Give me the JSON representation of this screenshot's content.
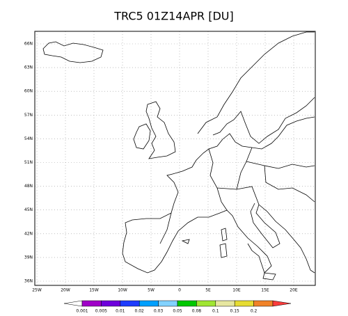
{
  "title": "TRC5 01Z14APR [DU]",
  "map": {
    "lat_labels": [
      "36N",
      "39N",
      "42N",
      "45N",
      "48N",
      "51N",
      "54N",
      "57N",
      "60N",
      "63N",
      "66N"
    ],
    "lon_labels": [
      "25W",
      "20W",
      "15W",
      "10W",
      "5W",
      "0",
      "5E",
      "10E",
      "15E",
      "20E"
    ]
  },
  "colorbar": {
    "labels": [
      "0.001",
      "0.005",
      "0.01",
      "0.02",
      "0.03",
      "0.05",
      "0.08",
      "0.1",
      "0.15",
      "0.2"
    ],
    "colors": [
      "#ffffff",
      "#a000c8",
      "#6e00dc",
      "#1e3cff",
      "#00a0ff",
      "#82d2ff",
      "#00c800",
      "#a0e632",
      "#e6e6a0",
      "#e6dc32",
      "#f08228",
      "#fa3c3c"
    ]
  }
}
